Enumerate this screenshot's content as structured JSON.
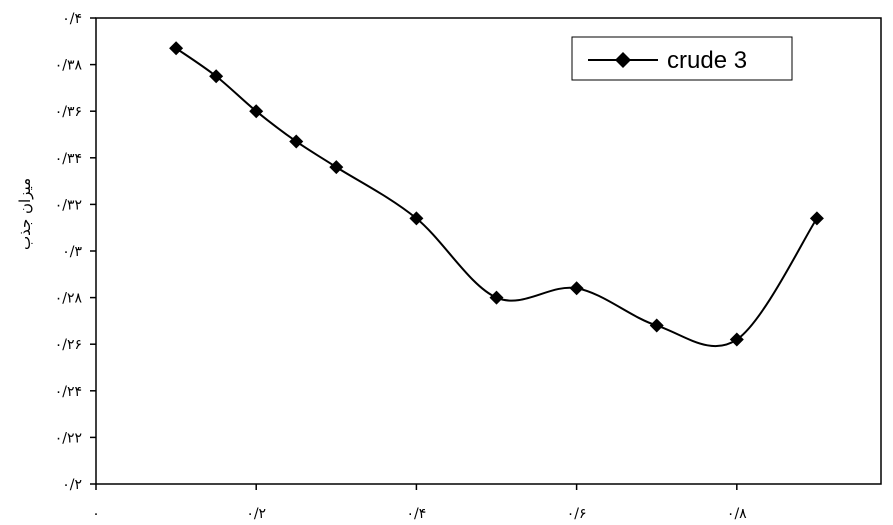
{
  "chart_data": {
    "type": "line",
    "title": "",
    "xlabel": "",
    "ylabel": "میزان جذب",
    "xlim": [
      0,
      0.98
    ],
    "ylim": [
      0.2,
      0.4
    ],
    "x_ticks": [
      0,
      0.2,
      0.4,
      0.6,
      0.8
    ],
    "x_tick_labels": [
      "۰",
      "۰/۲",
      "۰/۴",
      "۰/۶",
      "۰/۸"
    ],
    "y_ticks": [
      0.2,
      0.22,
      0.24,
      0.26,
      0.28,
      0.3,
      0.32,
      0.34,
      0.36,
      0.38,
      0.4
    ],
    "y_tick_labels": [
      "۰/۲",
      "۰/۲۲",
      "۰/۲۴",
      "۰/۲۶",
      "۰/۲۸",
      "۰/۳",
      "۰/۳۲",
      "۰/۳۴",
      "۰/۳۶",
      "۰/۳۸",
      "۰/۴"
    ],
    "grid": false,
    "legend_position": "top-right",
    "series": [
      {
        "name": "crude 3",
        "color": "#000000",
        "marker": "diamond",
        "x": [
          0.1,
          0.15,
          0.2,
          0.25,
          0.3,
          0.4,
          0.5,
          0.6,
          0.7,
          0.8,
          0.9
        ],
        "y": [
          0.387,
          0.375,
          0.36,
          0.347,
          0.336,
          0.314,
          0.28,
          0.284,
          0.268,
          0.262,
          0.314
        ]
      }
    ]
  }
}
